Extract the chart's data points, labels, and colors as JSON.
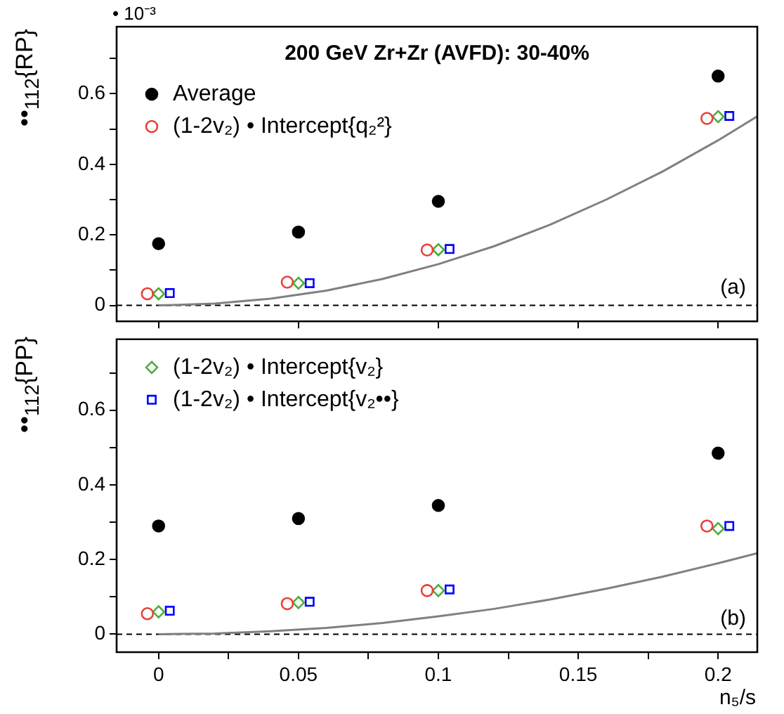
{
  "chart_data": [
    {
      "type": "scatter",
      "title": "200 GeV Zr+Zr (AVFD): 30-40%",
      "ylabel": "••$_{112}${RP}",
      "annotations": [
        "(a)",
        "• 10⁻³"
      ],
      "legend": "top left",
      "tick_labels": "y",
      "xlim": [
        -0.015,
        0.214
      ],
      "ylim": [
        -0.045,
        0.79
      ],
      "xticks": [
        {
          "value": 0,
          "label": null
        },
        {
          "value": 0.05,
          "label": null
        },
        {
          "value": 0.1,
          "label": null
        },
        {
          "value": 0.15,
          "label": null
        },
        {
          "value": 0.2,
          "label": null
        }
      ],
      "yticks": [
        0,
        {
          "value": 0.1,
          "label": null
        },
        0.2,
        {
          "value": 0.3,
          "label": null
        },
        0.4,
        {
          "value": 0.5,
          "label": null
        },
        0.6,
        {
          "value": 0.7,
          "label": null
        }
      ],
      "ref_lines": [
        {
          "axis": "y",
          "value": 0,
          "line_style": "dashed",
          "color": "#000000"
        }
      ],
      "series": [
        {
          "name": "Average",
          "color": "#000000",
          "marker": "circle",
          "x": [
            0,
            0.05,
            0.1,
            0.2
          ],
          "values": [
            0.175,
            0.208,
            0.295,
            0.65
          ]
        },
        {
          "name": "(1-2v₂) • Intercept{q₂²}",
          "color": "#e8413c",
          "marker": "circle",
          "x": [
            -0.004,
            0.046,
            0.096,
            0.196
          ],
          "values": [
            0.033,
            0.066,
            0.157,
            0.53
          ]
        },
        {
          "color": "#4caf3c",
          "marker": "diamond",
          "x": [
            0,
            0.05,
            0.1,
            0.2
          ],
          "values": [
            0.033,
            0.063,
            0.158,
            0.535
          ]
        },
        {
          "color": "#0000ff",
          "marker": "square",
          "x": [
            0.004,
            0.054,
            0.104,
            0.204
          ],
          "values": [
            0.035,
            0.063,
            0.16,
            0.537
          ]
        },
        {
          "type": "line",
          "color": "#808080",
          "marker": "none",
          "x": [
            0,
            0.02,
            0.04,
            0.06,
            0.08,
            0.1,
            0.12,
            0.14,
            0.16,
            0.18,
            0.2,
            0.214
          ],
          "values": [
            0,
            0.005,
            0.019,
            0.042,
            0.075,
            0.117,
            0.168,
            0.229,
            0.3,
            0.379,
            0.468,
            0.536
          ]
        }
      ]
    },
    {
      "type": "scatter",
      "xlabel": "n₅/s",
      "ylabel": "••$_{112}${PP}",
      "annotations": [
        "(b)"
      ],
      "legend": "top left",
      "xlim": [
        -0.015,
        0.214
      ],
      "ylim": [
        -0.048,
        0.79
      ],
      "xticks": [
        0,
        {
          "value": 0.025,
          "label": null
        },
        0.05,
        {
          "value": 0.075,
          "label": null
        },
        0.1,
        {
          "value": 0.125,
          "label": null
        },
        0.15,
        {
          "value": 0.175,
          "label": null
        },
        0.2
      ],
      "yticks": [
        0,
        {
          "value": 0.1,
          "label": null
        },
        0.2,
        {
          "value": 0.3,
          "label": null
        },
        0.4,
        {
          "value": 0.5,
          "label": null
        },
        0.6,
        {
          "value": 0.7,
          "label": null
        }
      ],
      "ref_lines": [
        {
          "axis": "y",
          "value": 0,
          "line_style": "dashed",
          "color": "#000000"
        }
      ],
      "series": [
        {
          "color": "#000000",
          "marker": "circle",
          "x": [
            0,
            0.05,
            0.1,
            0.2
          ],
          "values": [
            0.29,
            0.31,
            0.345,
            0.485
          ]
        },
        {
          "color": "#e8413c",
          "marker": "circle",
          "x": [
            -0.004,
            0.046,
            0.096,
            0.196
          ],
          "values": [
            0.055,
            0.082,
            0.117,
            0.29
          ]
        },
        {
          "name": "(1-2v₂) • Intercept{v₂}",
          "color": "#4caf3c",
          "marker": "diamond",
          "x": [
            0,
            0.05,
            0.1,
            0.2
          ],
          "values": [
            0.06,
            0.085,
            0.117,
            0.283
          ]
        },
        {
          "name": "(1-2v₂) • Intercept{v₂••}",
          "color": "#0000ff",
          "marker": "square",
          "x": [
            0.004,
            0.054,
            0.104,
            0.204
          ],
          "values": [
            0.063,
            0.087,
            0.12,
            0.29
          ]
        },
        {
          "type": "line",
          "color": "#808080",
          "marker": "none",
          "x": [
            0,
            0.02,
            0.04,
            0.06,
            0.08,
            0.1,
            0.12,
            0.14,
            0.16,
            0.18,
            0.2,
            0.214
          ],
          "values": [
            0,
            0.002,
            0.008,
            0.017,
            0.03,
            0.048,
            0.068,
            0.093,
            0.122,
            0.154,
            0.19,
            0.217
          ]
        }
      ]
    }
  ]
}
